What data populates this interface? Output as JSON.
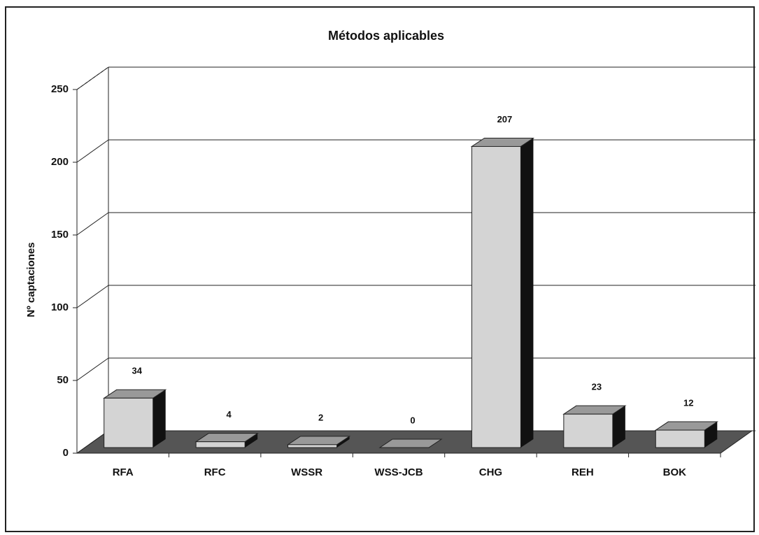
{
  "chart_data": {
    "type": "bar",
    "title": "Métodos aplicables",
    "y_label": "Nº captaciones",
    "categories": [
      "RFA",
      "RFC",
      "WSSR",
      "WSS-JCB",
      "CHG",
      "REH",
      "BOK"
    ],
    "values": [
      34,
      4,
      2,
      0,
      207,
      23,
      12
    ],
    "color": "#d4d4d4",
    "ylim": [
      0,
      250
    ],
    "yticks": [
      0,
      50,
      100,
      150,
      200,
      250
    ],
    "grid": true
  }
}
